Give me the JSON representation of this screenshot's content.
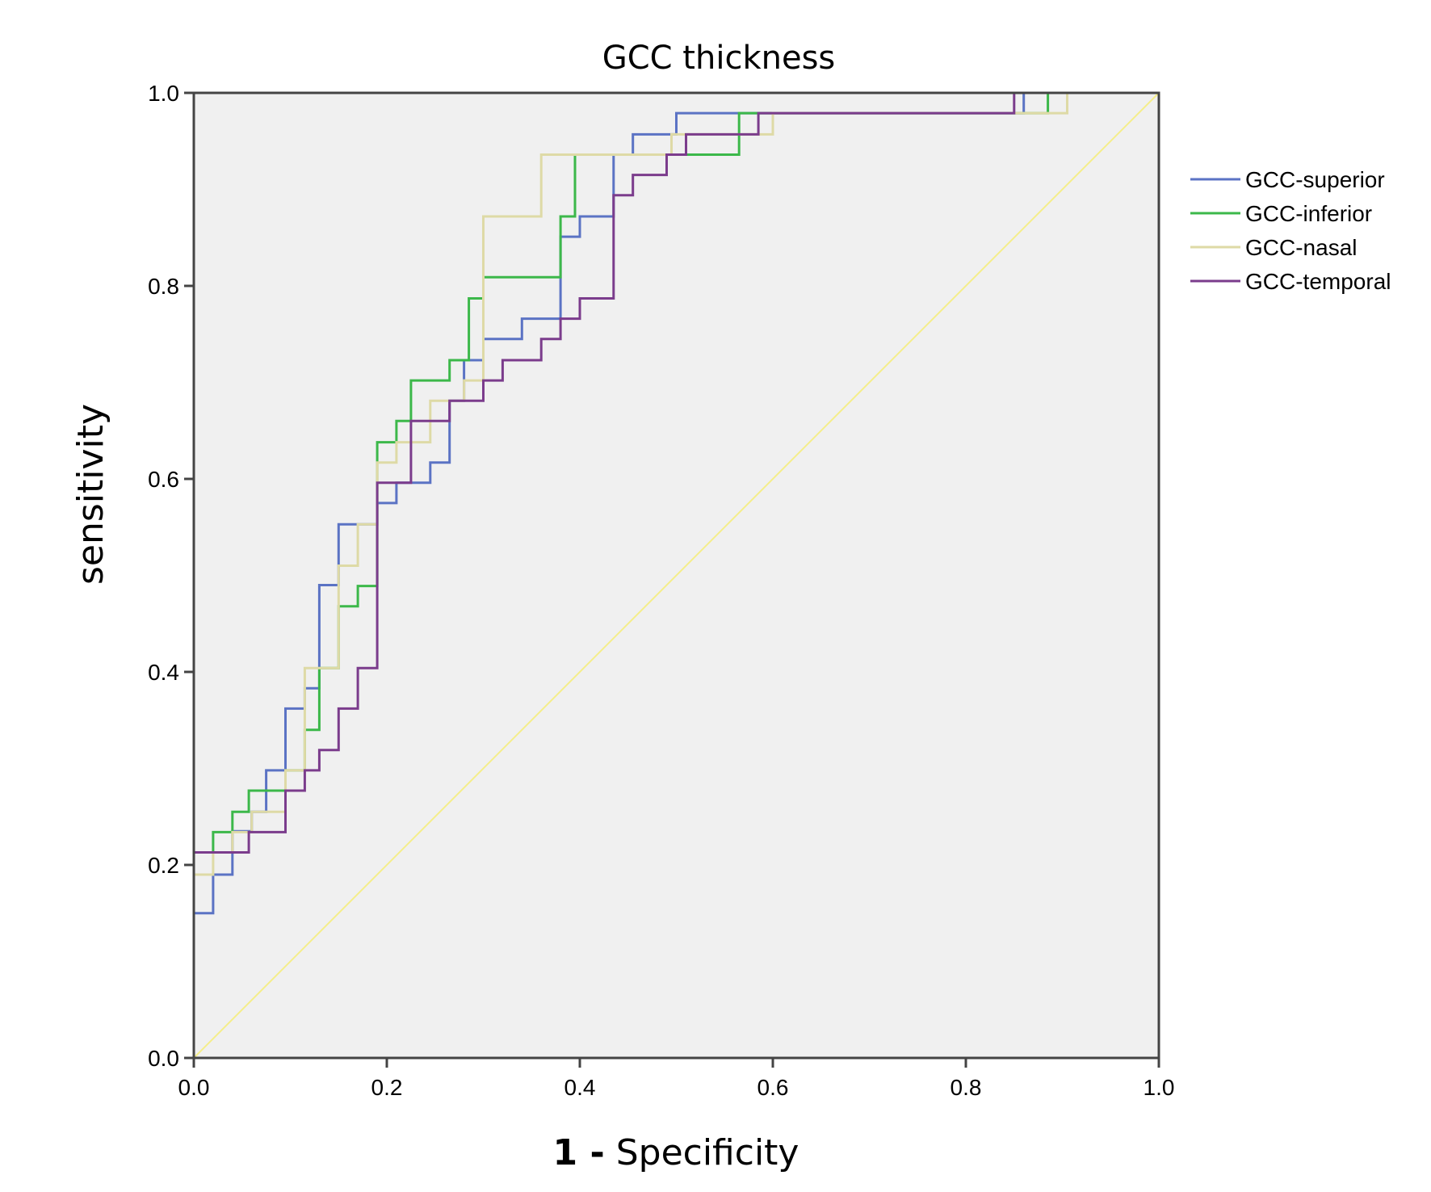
{
  "chart_data": {
    "type": "line",
    "title": "GCC thickness",
    "xlabel_bold": "1 -",
    "xlabel_rest": " Specificity",
    "ylabel": "sensitivity",
    "xlim": [
      0,
      1
    ],
    "ylim": [
      0,
      1
    ],
    "x_ticks": [
      "0.0",
      "0.2",
      "0.4",
      "0.6",
      "0.8",
      "1.0"
    ],
    "y_ticks": [
      "0.0",
      "0.2",
      "0.4",
      "0.6",
      "0.8",
      "1.0"
    ],
    "grid": false,
    "legend_position": "right",
    "reference_line": {
      "color": "#f5ee8a",
      "x": [
        0,
        1
      ],
      "y": [
        0,
        1
      ]
    },
    "series": [
      {
        "name": "GCC-superior",
        "color": "#5b73c4",
        "x": [
          0,
          0,
          0.02,
          0.02,
          0.04,
          0.04,
          0.06,
          0.06,
          0.075,
          0.075,
          0.095,
          0.095,
          0.115,
          0.115,
          0.13,
          0.13,
          0.15,
          0.15,
          0.19,
          0.19,
          0.21,
          0.21,
          0.245,
          0.245,
          0.265,
          0.265,
          0.28,
          0.28,
          0.3,
          0.3,
          0.34,
          0.34,
          0.38,
          0.38,
          0.4,
          0.4,
          0.435,
          0.435,
          0.455,
          0.455,
          0.5,
          0.5,
          0.545,
          0.545,
          0.86,
          0.86,
          0.9,
          0.9,
          1
        ],
        "y": [
          0,
          0.15,
          0.15,
          0.19,
          0.19,
          0.235,
          0.235,
          0.255,
          0.255,
          0.298,
          0.298,
          0.362,
          0.362,
          0.383,
          0.383,
          0.49,
          0.49,
          0.553,
          0.553,
          0.575,
          0.575,
          0.596,
          0.596,
          0.617,
          0.617,
          0.681,
          0.681,
          0.723,
          0.723,
          0.745,
          0.745,
          0.766,
          0.766,
          0.851,
          0.851,
          0.872,
          0.872,
          0.936,
          0.936,
          0.957,
          0.957,
          0.979,
          0.979,
          0.979,
          0.979,
          1.0,
          1.0,
          1.0,
          1.0
        ]
      },
      {
        "name": "GCC-inferior",
        "color": "#3cb84a",
        "x": [
          0,
          0,
          0.02,
          0.02,
          0.04,
          0.04,
          0.057,
          0.057,
          0.095,
          0.095,
          0.115,
          0.115,
          0.13,
          0.13,
          0.15,
          0.15,
          0.17,
          0.17,
          0.19,
          0.19,
          0.21,
          0.21,
          0.225,
          0.225,
          0.265,
          0.265,
          0.285,
          0.285,
          0.3,
          0.3,
          0.38,
          0.38,
          0.395,
          0.395,
          0.44,
          0.44,
          0.5,
          0.5,
          0.565,
          0.565,
          0.58,
          0.58,
          0.885,
          0.885,
          1
        ],
        "y": [
          0,
          0.213,
          0.213,
          0.234,
          0.234,
          0.255,
          0.255,
          0.277,
          0.277,
          0.298,
          0.298,
          0.34,
          0.34,
          0.404,
          0.404,
          0.468,
          0.468,
          0.489,
          0.489,
          0.638,
          0.638,
          0.66,
          0.66,
          0.702,
          0.702,
          0.723,
          0.723,
          0.787,
          0.787,
          0.809,
          0.809,
          0.872,
          0.872,
          0.936,
          0.936,
          0.936,
          0.936,
          0.936,
          0.936,
          0.979,
          0.979,
          0.979,
          0.979,
          1.0,
          1.0
        ]
      },
      {
        "name": "GCC-nasal",
        "color": "#dedaa6",
        "x": [
          0,
          0,
          0.02,
          0.02,
          0.04,
          0.04,
          0.06,
          0.06,
          0.095,
          0.095,
          0.115,
          0.115,
          0.15,
          0.15,
          0.17,
          0.17,
          0.19,
          0.19,
          0.21,
          0.21,
          0.245,
          0.245,
          0.28,
          0.28,
          0.3,
          0.3,
          0.33,
          0.33,
          0.36,
          0.36,
          0.4,
          0.4,
          0.495,
          0.495,
          0.6,
          0.6,
          0.905,
          0.905,
          1
        ],
        "y": [
          0,
          0.19,
          0.19,
          0.213,
          0.213,
          0.234,
          0.234,
          0.255,
          0.255,
          0.298,
          0.298,
          0.404,
          0.404,
          0.51,
          0.51,
          0.553,
          0.553,
          0.617,
          0.617,
          0.638,
          0.638,
          0.681,
          0.681,
          0.702,
          0.702,
          0.872,
          0.872,
          0.872,
          0.872,
          0.936,
          0.936,
          0.936,
          0.936,
          0.957,
          0.957,
          0.979,
          0.979,
          1.0,
          1.0
        ]
      },
      {
        "name": "GCC-temporal",
        "color": "#7b3c8c",
        "x": [
          0,
          0,
          0.057,
          0.057,
          0.095,
          0.095,
          0.115,
          0.115,
          0.13,
          0.13,
          0.15,
          0.15,
          0.17,
          0.17,
          0.19,
          0.19,
          0.225,
          0.225,
          0.265,
          0.265,
          0.3,
          0.3,
          0.32,
          0.32,
          0.36,
          0.36,
          0.38,
          0.38,
          0.4,
          0.4,
          0.435,
          0.435,
          0.455,
          0.455,
          0.49,
          0.49,
          0.51,
          0.51,
          0.585,
          0.585,
          0.85,
          0.85,
          1
        ],
        "y": [
          0,
          0.213,
          0.213,
          0.234,
          0.234,
          0.277,
          0.277,
          0.298,
          0.298,
          0.319,
          0.319,
          0.362,
          0.362,
          0.404,
          0.404,
          0.596,
          0.596,
          0.66,
          0.66,
          0.681,
          0.681,
          0.702,
          0.702,
          0.723,
          0.723,
          0.745,
          0.745,
          0.766,
          0.766,
          0.787,
          0.787,
          0.894,
          0.894,
          0.915,
          0.915,
          0.936,
          0.936,
          0.957,
          0.957,
          0.979,
          0.979,
          1.0,
          1.0
        ]
      }
    ]
  }
}
